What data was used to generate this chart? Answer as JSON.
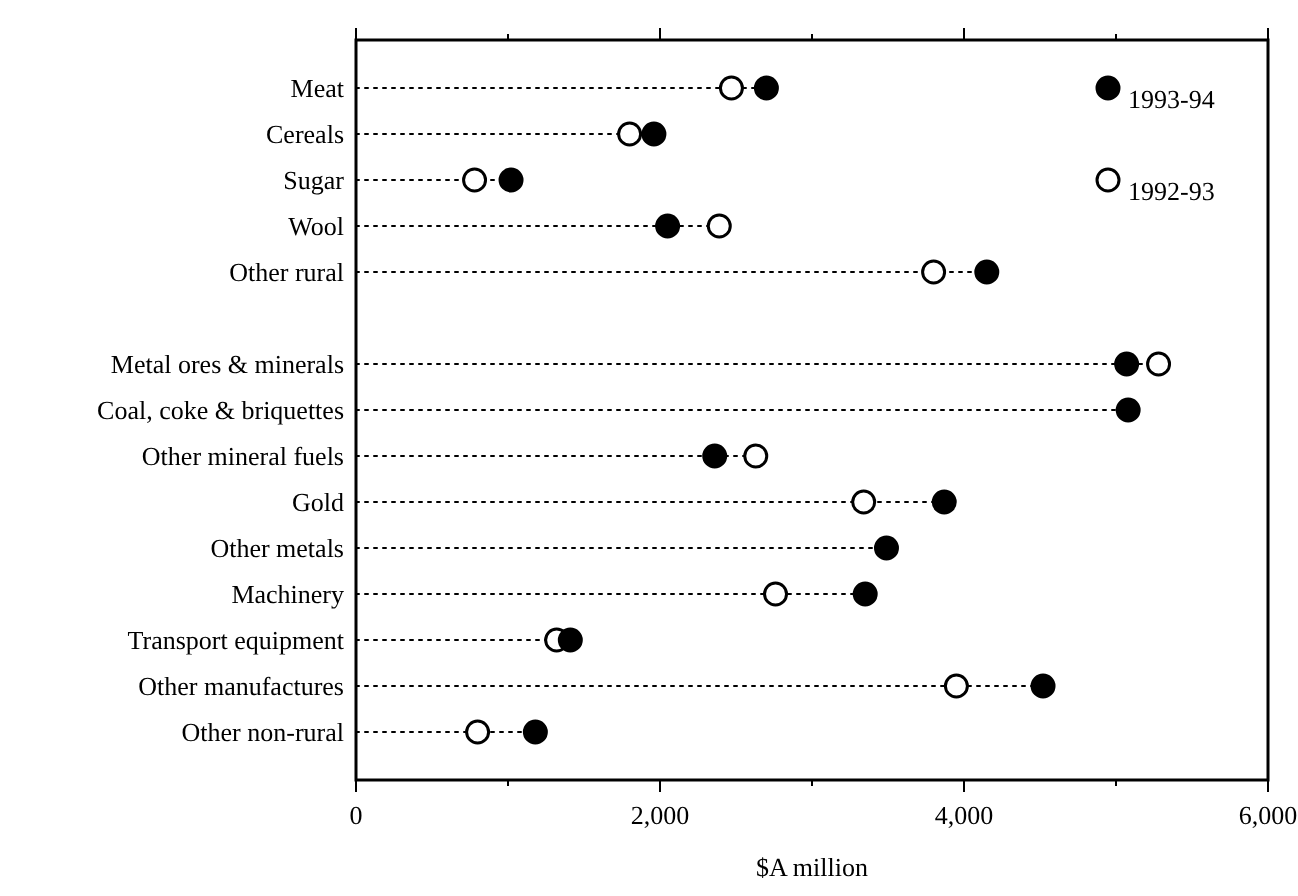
{
  "chart_data": {
    "type": "lollipop",
    "orientation": "horizontal",
    "xlabel": "$A million",
    "categories": [
      "Meat",
      "Cereals",
      "Sugar",
      "Wool",
      "Other rural",
      null,
      "Metal ores & minerals",
      "Coal, coke & briquettes",
      "Other mineral fuels",
      "Gold",
      "Other metals",
      "Machinery",
      "Transport equipment",
      "Other manufactures",
      "Other non-rural"
    ],
    "series": [
      {
        "name": "1993-94",
        "color": "#000000",
        "values": [
          2700,
          1960,
          1020,
          2050,
          4150,
          null,
          5070,
          5080,
          2360,
          3870,
          3490,
          3350,
          1410,
          4520,
          1180
        ]
      },
      {
        "name": "1992-93",
        "color": "#ffffff",
        "values": [
          2470,
          1800,
          780,
          2390,
          3800,
          null,
          5280,
          null,
          2630,
          3340,
          null,
          2760,
          1320,
          3950,
          800
        ]
      }
    ],
    "xlim": [
      0,
      6000
    ],
    "xticks": [
      0,
      {
        "value": 1000,
        "label": null
      },
      {
        "value": 2000,
        "label": "2,000"
      },
      {
        "value": 3000,
        "label": null
      },
      {
        "value": 4000,
        "label": "4,000"
      },
      {
        "value": 5000,
        "label": null
      },
      {
        "value": 6000,
        "label": "6,000"
      }
    ],
    "line_style": "dotted",
    "marker": "circle",
    "legend": "top right",
    "grid": false
  }
}
